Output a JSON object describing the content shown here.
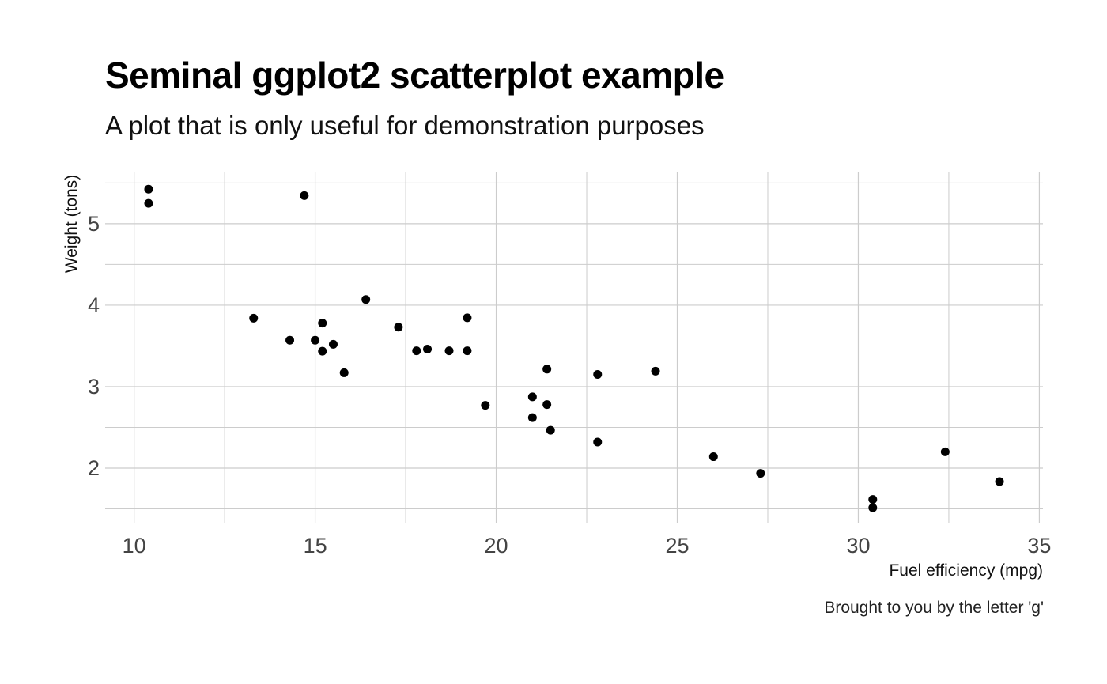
{
  "chart_data": {
    "type": "scatter",
    "title": "Seminal ggplot2 scatterplot example",
    "subtitle": "A plot that is only useful for demonstration purposes",
    "caption": "Brought to you by the letter 'g'",
    "xlabel": "Fuel efficiency (mpg)",
    "ylabel": "Weight (tons)",
    "xlim": [
      9.2,
      35.1
    ],
    "ylim": [
      1.33,
      5.63
    ],
    "xticks": [
      10,
      15,
      20,
      25,
      30,
      35
    ],
    "xtick_labels": [
      "10",
      "15",
      "20",
      "25",
      "30",
      "35"
    ],
    "x_minor_ticks": [
      12.5,
      17.5,
      22.5,
      27.5,
      32.5
    ],
    "yticks": [
      2,
      3,
      4,
      5
    ],
    "ytick_labels": [
      "2",
      "3",
      "4",
      "5"
    ],
    "y_minor_ticks": [
      1.5,
      2.5,
      3.5,
      4.5,
      5.5
    ],
    "grid": true,
    "point_color": "#000000",
    "grid_color": "#cccccc",
    "points": [
      {
        "x": 10.4,
        "y": 5.424
      },
      {
        "x": 10.4,
        "y": 5.25
      },
      {
        "x": 14.7,
        "y": 5.345
      },
      {
        "x": 13.3,
        "y": 3.84
      },
      {
        "x": 14.3,
        "y": 3.57
      },
      {
        "x": 15.0,
        "y": 3.57
      },
      {
        "x": 15.2,
        "y": 3.78
      },
      {
        "x": 15.2,
        "y": 3.435
      },
      {
        "x": 15.5,
        "y": 3.52
      },
      {
        "x": 15.8,
        "y": 3.17
      },
      {
        "x": 16.4,
        "y": 4.07
      },
      {
        "x": 17.3,
        "y": 3.73
      },
      {
        "x": 17.8,
        "y": 3.44
      },
      {
        "x": 18.1,
        "y": 3.46
      },
      {
        "x": 18.7,
        "y": 3.44
      },
      {
        "x": 19.2,
        "y": 3.845
      },
      {
        "x": 19.2,
        "y": 3.44
      },
      {
        "x": 19.7,
        "y": 2.77
      },
      {
        "x": 21.0,
        "y": 2.875
      },
      {
        "x": 21.0,
        "y": 2.62
      },
      {
        "x": 21.4,
        "y": 3.215
      },
      {
        "x": 21.4,
        "y": 2.78
      },
      {
        "x": 21.5,
        "y": 2.465
      },
      {
        "x": 22.8,
        "y": 3.15
      },
      {
        "x": 22.8,
        "y": 2.32
      },
      {
        "x": 24.4,
        "y": 3.19
      },
      {
        "x": 26.0,
        "y": 2.14
      },
      {
        "x": 27.3,
        "y": 1.935
      },
      {
        "x": 30.4,
        "y": 1.615
      },
      {
        "x": 30.4,
        "y": 1.513
      },
      {
        "x": 32.4,
        "y": 2.2
      },
      {
        "x": 33.9,
        "y": 1.835
      }
    ]
  }
}
